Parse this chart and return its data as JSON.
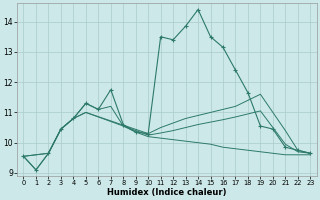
{
  "xlabel": "Humidex (Indice chaleur)",
  "bg_color": "#cce8e8",
  "grid_color": "#aacccc",
  "line_color": "#2d7a6a",
  "xlim": [
    -0.5,
    23.5
  ],
  "ylim": [
    8.9,
    14.6
  ],
  "yticks": [
    9,
    10,
    11,
    12,
    13,
    14
  ],
  "xticks": [
    0,
    1,
    2,
    3,
    4,
    5,
    6,
    7,
    8,
    9,
    10,
    11,
    12,
    13,
    14,
    15,
    16,
    17,
    18,
    19,
    20,
    21,
    22,
    23
  ],
  "main_x": [
    0,
    1,
    2,
    3,
    4,
    5,
    6,
    7,
    8,
    9,
    10,
    11,
    12,
    13,
    14,
    15,
    16,
    17,
    18,
    19,
    20,
    21,
    22,
    23
  ],
  "main_y": [
    9.55,
    9.1,
    9.65,
    10.45,
    10.8,
    11.3,
    11.1,
    11.75,
    10.6,
    10.35,
    10.3,
    13.5,
    13.4,
    13.85,
    14.4,
    13.5,
    13.15,
    12.4,
    11.65,
    10.55,
    10.45,
    9.85,
    9.75,
    9.65
  ],
  "line2_x": [
    0,
    1,
    2,
    3,
    4,
    5,
    6,
    7,
    8,
    9,
    10,
    11,
    12,
    13,
    14,
    15,
    16,
    17,
    18,
    19,
    20,
    21,
    22,
    23
  ],
  "line2_y": [
    9.55,
    9.1,
    9.65,
    10.45,
    10.8,
    11.3,
    11.1,
    11.2,
    10.55,
    10.35,
    10.2,
    10.15,
    10.1,
    10.05,
    10.0,
    9.95,
    9.85,
    9.8,
    9.75,
    9.7,
    9.65,
    9.6,
    9.6,
    9.6
  ],
  "line3_x": [
    0,
    2,
    3,
    4,
    5,
    10,
    11,
    12,
    13,
    14,
    15,
    16,
    17,
    18,
    19,
    20,
    21,
    22,
    23
  ],
  "line3_y": [
    9.55,
    9.65,
    10.45,
    10.8,
    11.0,
    10.3,
    10.5,
    10.65,
    10.8,
    10.9,
    11.0,
    11.1,
    11.2,
    11.4,
    11.6,
    11.0,
    10.4,
    9.75,
    9.65
  ],
  "line4_x": [
    0,
    2,
    3,
    4,
    5,
    10,
    11,
    12,
    13,
    14,
    15,
    16,
    17,
    18,
    19,
    20,
    21,
    22,
    23
  ],
  "line4_y": [
    9.55,
    9.65,
    10.45,
    10.8,
    11.0,
    10.25,
    10.32,
    10.4,
    10.5,
    10.6,
    10.68,
    10.76,
    10.85,
    10.95,
    11.05,
    10.5,
    9.95,
    9.7,
    9.65
  ]
}
